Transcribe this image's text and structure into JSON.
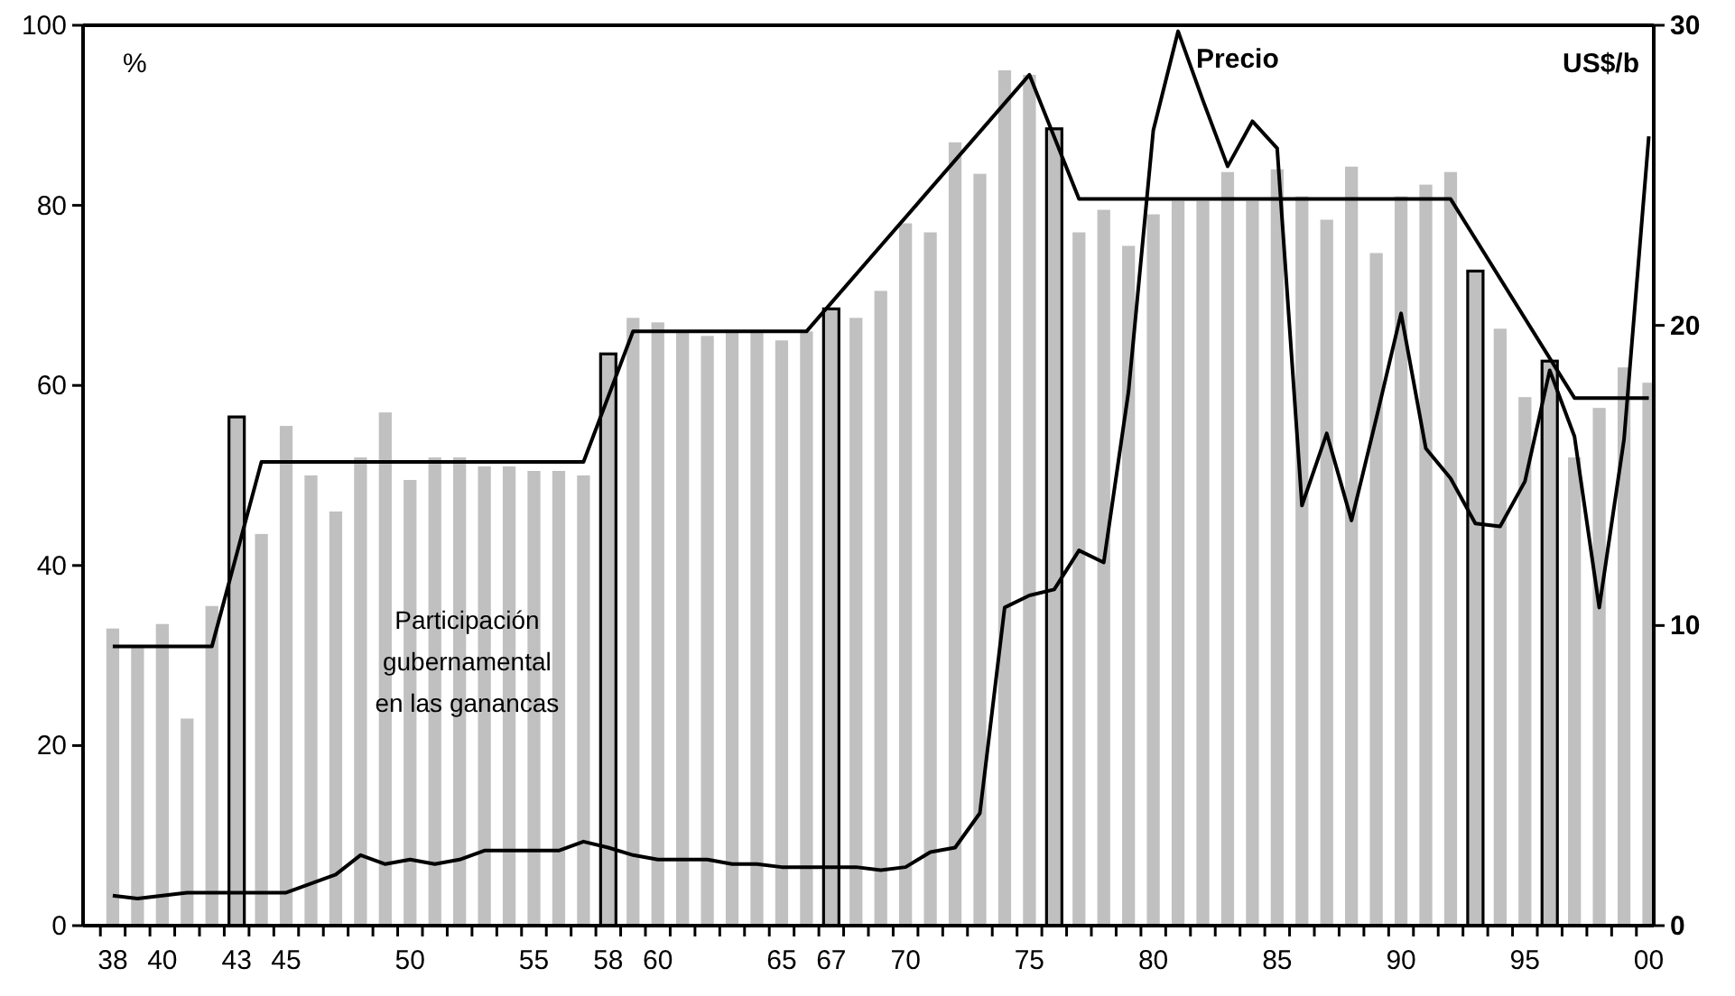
{
  "chart_data": {
    "type": "bar",
    "ylabel": "%",
    "y2label": "US$/b",
    "x": [
      1938,
      1939,
      1940,
      1941,
      1942,
      1943,
      1944,
      1945,
      1946,
      1947,
      1948,
      1949,
      1950,
      1951,
      1952,
      1953,
      1954,
      1955,
      1956,
      1957,
      1958,
      1959,
      1960,
      1961,
      1962,
      1963,
      1964,
      1965,
      1966,
      1967,
      1968,
      1969,
      1970,
      1971,
      1972,
      1973,
      1974,
      1975,
      1976,
      1977,
      1978,
      1979,
      1980,
      1981,
      1982,
      1983,
      1984,
      1985,
      1986,
      1987,
      1988,
      1989,
      1990,
      1991,
      1992,
      1993,
      1994,
      1995,
      1996,
      1997,
      1998,
      1999,
      2000
    ],
    "series": [
      {
        "name": "Participación gubernamental en las ganancas",
        "color": "#c0c0c0",
        "values": [
          33,
          31,
          33.5,
          23,
          35.5,
          null,
          43.5,
          55.5,
          50,
          46,
          52,
          57,
          49.5,
          52,
          52,
          51,
          51,
          50.5,
          50.5,
          50,
          null,
          67.5,
          67,
          66,
          65.5,
          66,
          66,
          65,
          66,
          null,
          67.5,
          70.5,
          78,
          77,
          87,
          83.5,
          95,
          94.5,
          null,
          77,
          79.5,
          75.5,
          79,
          80.5,
          80.5,
          83.7,
          80.5,
          84,
          81,
          78.4,
          84.3,
          74.7,
          81,
          82.3,
          83.7,
          null,
          66.3,
          58.7,
          null,
          52,
          57.5,
          62,
          60.3
        ]
      },
      {
        "color": "#c0c0c0",
        "x": [
          1943,
          1958,
          1967,
          1976,
          1993,
          1996
        ],
        "values": [
          56.5,
          63.5,
          68.5,
          88.5,
          72.7,
          62.7
        ]
      },
      {
        "type": "line",
        "color": "#000000",
        "x": [
          1938,
          1942,
          1944,
          1957,
          1959,
          1966,
          1975,
          1977,
          1992,
          1997,
          2000
        ],
        "values": [
          31,
          31,
          51.5,
          51.5,
          66,
          66,
          94.5,
          80.7,
          80.7,
          58.6,
          58.6
        ]
      },
      {
        "type": "line",
        "name": "Precio",
        "axis": "y2",
        "color": "#000000",
        "values": [
          1,
          0.9,
          1,
          1.1,
          1.1,
          1.1,
          1.1,
          1.1,
          1.4,
          1.7,
          2.35,
          2.05,
          2.2,
          2.05,
          2.2,
          2.5,
          2.5,
          2.5,
          2.5,
          2.8,
          2.6,
          2.35,
          2.2,
          2.2,
          2.2,
          2.05,
          2.05,
          1.95,
          1.95,
          1.95,
          1.95,
          1.85,
          1.95,
          2.45,
          2.6,
          3.75,
          10.6,
          11,
          11.2,
          12.5,
          12.1,
          17.8,
          26.5,
          29.8,
          27.5,
          25.3,
          26.8,
          25.9,
          14,
          16.4,
          13.5,
          16.9,
          20.4,
          15.9,
          14.9,
          13.4,
          13.3,
          14.8,
          18.5,
          16.3,
          10.6,
          16.2,
          26.3
        ]
      }
    ],
    "xlim": [
      1936.8,
      2000.2
    ],
    "xticks": [
      {
        "value": 1938,
        "label": "38"
      },
      {
        "value": 1940,
        "label": "40"
      },
      {
        "value": 1943,
        "label": "43"
      },
      {
        "value": 1945,
        "label": "45"
      },
      {
        "value": 1950,
        "label": "50"
      },
      {
        "value": 1955,
        "label": "55"
      },
      {
        "value": 1958,
        "label": "58"
      },
      {
        "value": 1960,
        "label": "60"
      },
      {
        "value": 1965,
        "label": "65"
      },
      {
        "value": 1967,
        "label": "67"
      },
      {
        "value": 1970,
        "label": "70"
      },
      {
        "value": 1975,
        "label": "75"
      },
      {
        "value": 1980,
        "label": "80"
      },
      {
        "value": 1985,
        "label": "85"
      },
      {
        "value": 1990,
        "label": "90"
      },
      {
        "value": 1995,
        "label": "95"
      },
      {
        "value": 2000,
        "label": "00"
      },
      {
        "value": 1937.5,
        "label": null
      },
      {
        "value": 1938.5,
        "label": null
      },
      {
        "value": 1939.5,
        "label": null
      },
      {
        "value": 1940.5,
        "label": null
      },
      {
        "value": 1941.5,
        "label": null
      },
      {
        "value": 1942.5,
        "label": null
      },
      {
        "value": 1943.5,
        "label": null
      },
      {
        "value": 1944.5,
        "label": null
      },
      {
        "value": 1945.5,
        "label": null
      },
      {
        "value": 1946.5,
        "label": null
      },
      {
        "value": 1947.5,
        "label": null
      },
      {
        "value": 1948.5,
        "label": null
      },
      {
        "value": 1949.5,
        "label": null
      },
      {
        "value": 1950.5,
        "label": null
      },
      {
        "value": 1951.5,
        "label": null
      },
      {
        "value": 1952.5,
        "label": null
      },
      {
        "value": 1953.5,
        "label": null
      },
      {
        "value": 1954.5,
        "label": null
      },
      {
        "value": 1955.5,
        "label": null
      },
      {
        "value": 1956.5,
        "label": null
      },
      {
        "value": 1957.5,
        "label": null
      },
      {
        "value": 1958.5,
        "label": null
      },
      {
        "value": 1959.5,
        "label": null
      },
      {
        "value": 1960.5,
        "label": null
      },
      {
        "value": 1961.5,
        "label": null
      },
      {
        "value": 1962.5,
        "label": null
      },
      {
        "value": 1963.5,
        "label": null
      },
      {
        "value": 1964.5,
        "label": null
      },
      {
        "value": 1965.5,
        "label": null
      },
      {
        "value": 1966.5,
        "label": null
      },
      {
        "value": 1967.5,
        "label": null
      },
      {
        "value": 1968.5,
        "label": null
      },
      {
        "value": 1969.5,
        "label": null
      },
      {
        "value": 1970.5,
        "label": null
      },
      {
        "value": 1971.5,
        "label": null
      },
      {
        "value": 1972.5,
        "label": null
      },
      {
        "value": 1973.5,
        "label": null
      },
      {
        "value": 1974.5,
        "label": null
      },
      {
        "value": 1975.5,
        "label": null
      },
      {
        "value": 1976.5,
        "label": null
      },
      {
        "value": 1977.5,
        "label": null
      },
      {
        "value": 1978.5,
        "label": null
      },
      {
        "value": 1979.5,
        "label": null
      },
      {
        "value": 1980.5,
        "label": null
      },
      {
        "value": 1981.5,
        "label": null
      },
      {
        "value": 1982.5,
        "label": null
      },
      {
        "value": 1983.5,
        "label": null
      },
      {
        "value": 1984.5,
        "label": null
      },
      {
        "value": 1985.5,
        "label": null
      },
      {
        "value": 1986.5,
        "label": null
      },
      {
        "value": 1987.5,
        "label": null
      },
      {
        "value": 1988.5,
        "label": null
      },
      {
        "value": 1989.5,
        "label": null
      },
      {
        "value": 1990.5,
        "label": null
      },
      {
        "value": 1991.5,
        "label": null
      },
      {
        "value": 1992.5,
        "label": null
      },
      {
        "value": 1993.5,
        "label": null
      },
      {
        "value": 1994.5,
        "label": null
      },
      {
        "value": 1995.5,
        "label": null
      },
      {
        "value": 1996.5,
        "label": null
      },
      {
        "value": 1997.5,
        "label": null
      },
      {
        "value": 1998.5,
        "label": null
      },
      {
        "value": 1999.5,
        "label": null
      }
    ],
    "ylim": [
      0,
      100
    ],
    "yticks": [
      0,
      20,
      40,
      60,
      80,
      100
    ],
    "y2lim": [
      0,
      30
    ],
    "y2ticks": [
      0,
      10,
      20,
      30
    ],
    "grid": false
  }
}
